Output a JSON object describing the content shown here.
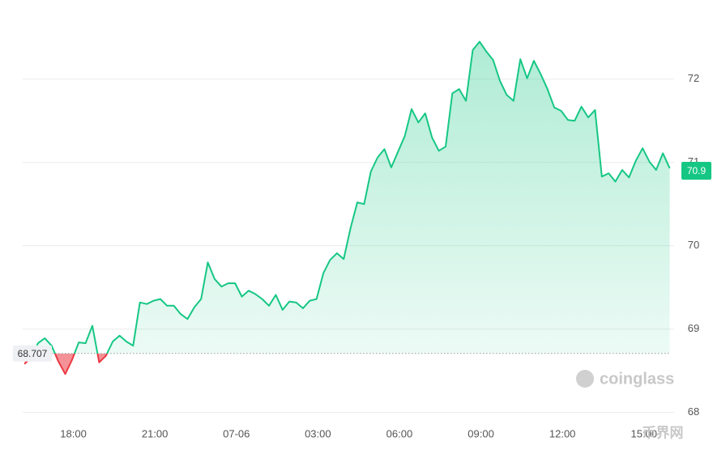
{
  "chart_data": {
    "type": "baseline-line",
    "x": [
      16.2,
      16.45,
      16.7,
      16.95,
      17.2,
      17.45,
      17.7,
      17.95,
      18.2,
      18.45,
      18.7,
      18.95,
      19.2,
      19.45,
      19.7,
      19.95,
      20.2,
      20.45,
      20.7,
      20.95,
      21.2,
      21.45,
      21.7,
      21.95,
      22.2,
      22.45,
      22.7,
      22.95,
      23.2,
      23.45,
      23.7,
      23.95,
      24.2,
      24.45,
      24.7,
      24.95,
      25.2,
      25.45,
      25.7,
      25.95,
      26.2,
      26.45,
      26.7,
      26.95,
      27.2,
      27.45,
      27.7,
      27.95,
      28.2,
      28.45,
      28.7,
      28.95,
      29.2,
      29.45,
      29.7,
      29.95,
      30.2,
      30.45,
      30.7,
      30.95,
      31.2,
      31.45,
      31.7,
      31.95,
      32.2,
      32.45,
      32.7,
      32.95,
      33.2,
      33.45,
      33.7,
      33.95,
      34.2,
      34.45,
      34.7,
      34.95,
      35.2,
      35.45,
      35.7,
      35.95,
      36.2,
      36.45,
      36.7,
      36.95,
      37.2,
      37.45,
      37.7,
      37.95,
      38.2,
      38.45,
      38.7,
      38.95,
      39.2,
      39.45,
      39.7,
      39.95
    ],
    "values": [
      68.58,
      68.66,
      68.83,
      68.89,
      68.8,
      68.61,
      68.46,
      68.63,
      68.84,
      68.83,
      69.04,
      68.6,
      68.68,
      68.85,
      68.92,
      68.85,
      68.8,
      69.32,
      69.3,
      69.34,
      69.36,
      69.28,
      69.28,
      69.18,
      69.12,
      69.26,
      69.36,
      69.8,
      69.6,
      69.51,
      69.55,
      69.55,
      69.39,
      69.46,
      69.42,
      69.36,
      69.28,
      69.41,
      69.23,
      69.33,
      69.32,
      69.25,
      69.34,
      69.36,
      69.67,
      69.83,
      69.91,
      69.84,
      70.21,
      70.52,
      70.5,
      70.89,
      71.06,
      71.16,
      70.94,
      71.13,
      71.32,
      71.64,
      71.48,
      71.59,
      71.3,
      71.14,
      71.19,
      71.83,
      71.88,
      71.74,
      72.35,
      72.45,
      72.33,
      72.23,
      71.98,
      71.81,
      71.74,
      72.24,
      72.01,
      72.22,
      72.06,
      71.88,
      71.66,
      71.62,
      71.51,
      71.5,
      71.67,
      71.54,
      71.63,
      70.83,
      70.87,
      70.77,
      70.91,
      70.82,
      71.02,
      71.17,
      71.01,
      70.91,
      71.11,
      70.93
    ],
    "baseline": 68.707,
    "last_price": 70.9,
    "up_color": "#16c784",
    "down_color": "#ea3943",
    "xlim": [
      15.3,
      40.2
    ],
    "ylim": [
      67.5,
      72.95
    ],
    "xticks": [
      {
        "value": 18,
        "label": "18:00"
      },
      {
        "value": 21,
        "label": "21:00"
      },
      {
        "value": 24,
        "label": "07-06"
      },
      {
        "value": 27,
        "label": "03:00"
      },
      {
        "value": 30,
        "label": "06:00"
      },
      {
        "value": 33,
        "label": "09:00"
      },
      {
        "value": 36,
        "label": "12:00"
      },
      {
        "value": 39,
        "label": "15:00"
      }
    ],
    "yticks": [
      68,
      69,
      70,
      71,
      72
    ],
    "grid": true,
    "watermark": "coinglass",
    "corner_watermark": "币界网"
  }
}
